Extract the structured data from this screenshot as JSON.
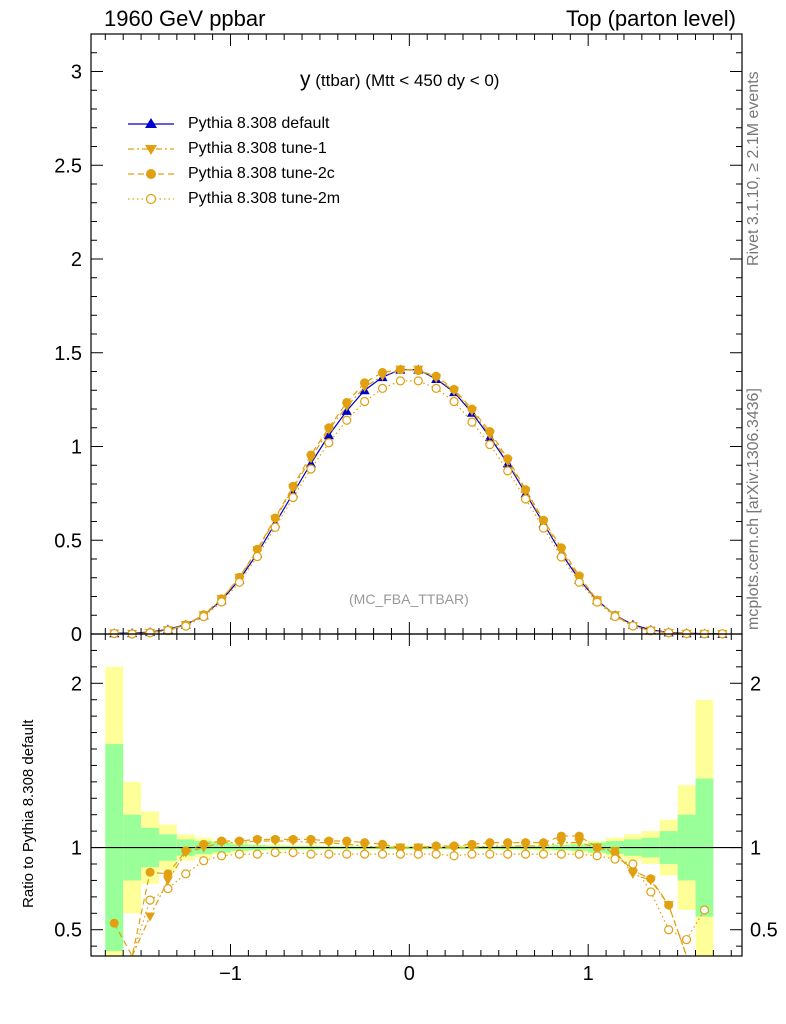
{
  "header": {
    "left": "1960 GeV ppbar",
    "right": "Top (parton level)"
  },
  "side_text": {
    "rivet": "Rivet 3.1.10, ≥ 2.1M events",
    "mcplots": "mcplots.cern.ch [arXiv:1306.3436]"
  },
  "ratio_ylabel": "Ratio to Pythia 8.308 default",
  "analysis_tag": "(MC_FBA_TTBAR)",
  "title": {
    "main": "y",
    "sub": "(ttbar) (Mtt < 450 dy < 0)"
  },
  "colors": {
    "default": "#0000cc",
    "tunes": "#e0a010",
    "band_inner": "#99ff99",
    "band_outer": "#ffff99"
  },
  "chart_data": [
    {
      "type": "line",
      "title": "y (ttbar) (Mtt < 450 dy < 0)",
      "xlim": [
        -1.78,
        1.86
      ],
      "ylim": [
        0,
        3.2
      ],
      "x_ticks": [
        -1,
        0,
        1
      ],
      "y_ticks": [
        0,
        0.5,
        1,
        1.5,
        2,
        2.5,
        3
      ],
      "y_tick_labels": [
        "0",
        "0.5",
        "1",
        "1.5",
        "2",
        "2.5",
        "3"
      ],
      "legend_position": "top-left",
      "x": [
        -1.65,
        -1.55,
        -1.45,
        -1.35,
        -1.25,
        -1.15,
        -1.05,
        -0.95,
        -0.85,
        -0.75,
        -0.65,
        -0.55,
        -0.45,
        -0.35,
        -0.25,
        -0.15,
        -0.05,
        0.05,
        0.15,
        0.25,
        0.35,
        0.45,
        0.55,
        0.65,
        0.75,
        0.85,
        0.95,
        1.05,
        1.15,
        1.25,
        1.35,
        1.45,
        1.55,
        1.65,
        1.75
      ],
      "series": [
        {
          "name": "Pythia 8.308 default",
          "marker": "triangle-up",
          "line": "solid",
          "values": [
            0.004,
            0.005,
            0.01,
            0.025,
            0.05,
            0.1,
            0.18,
            0.29,
            0.43,
            0.59,
            0.75,
            0.91,
            1.06,
            1.19,
            1.3,
            1.37,
            1.41,
            1.41,
            1.36,
            1.29,
            1.18,
            1.05,
            0.91,
            0.75,
            0.59,
            0.43,
            0.29,
            0.18,
            0.1,
            0.05,
            0.022,
            0.009,
            0.004,
            0.002,
            0.001
          ]
        },
        {
          "name": "Pythia 8.308 tune-1",
          "marker": "triangle-down",
          "line": "dashdot",
          "values": [
            0.003,
            0.001,
            0.006,
            0.02,
            0.048,
            0.1,
            0.186,
            0.3,
            0.446,
            0.612,
            0.778,
            0.937,
            1.09,
            1.214,
            1.317,
            1.376,
            1.41,
            1.41,
            1.365,
            1.296,
            1.19,
            1.063,
            0.92,
            0.76,
            0.597,
            0.444,
            0.3,
            0.18,
            0.1,
            0.042,
            0.018,
            0.006,
            0.001,
            0.001,
            0.0
          ]
        },
        {
          "name": "Pythia 8.308 tune-2c",
          "marker": "circle",
          "line": "dashed",
          "values": [
            0.002,
            0.001,
            0.008,
            0.021,
            0.049,
            0.103,
            0.188,
            0.302,
            0.452,
            0.619,
            0.788,
            0.955,
            1.1,
            1.235,
            1.34,
            1.395,
            1.41,
            1.405,
            1.375,
            1.305,
            1.2,
            1.08,
            0.935,
            0.77,
            0.607,
            0.46,
            0.31,
            0.18,
            0.097,
            0.043,
            0.018,
            0.006,
            0.003,
            0.001,
            0.0
          ]
        },
        {
          "name": "Pythia 8.308 tune-2m",
          "marker": "circle-open",
          "line": "dotted",
          "values": [
            0.0025,
            0.0,
            0.0068,
            0.019,
            0.042,
            0.093,
            0.171,
            0.276,
            0.413,
            0.569,
            0.728,
            0.88,
            1.02,
            1.14,
            1.24,
            1.31,
            1.35,
            1.35,
            1.31,
            1.24,
            1.13,
            1.01,
            0.87,
            0.72,
            0.565,
            0.411,
            0.276,
            0.17,
            0.093,
            0.043,
            0.018,
            0.007,
            0.002,
            0.001,
            0.001
          ]
        }
      ]
    },
    {
      "type": "line",
      "ylabel": "Ratio to Pythia 8.308 default",
      "xlim": [
        -1.78,
        1.86
      ],
      "ylim": [
        0.34,
        2.3
      ],
      "x_ticks": [
        -1,
        0,
        1
      ],
      "x_tick_labels": [
        "−1",
        "0",
        "1"
      ],
      "y_ticks": [
        0.5,
        1,
        2
      ],
      "y_tick_labels": [
        "0.5",
        "1",
        "2"
      ],
      "x": [
        -1.65,
        -1.55,
        -1.45,
        -1.35,
        -1.25,
        -1.15,
        -1.05,
        -0.95,
        -0.85,
        -0.75,
        -0.65,
        -0.55,
        -0.45,
        -0.35,
        -0.25,
        -0.15,
        -0.05,
        0.05,
        0.15,
        0.25,
        0.35,
        0.45,
        0.55,
        0.65,
        0.75,
        0.85,
        0.95,
        1.05,
        1.15,
        1.25,
        1.35,
        1.45,
        1.55,
        1.65
      ],
      "band_edges": [
        -1.7,
        -1.6,
        -1.5,
        -1.4,
        -1.3,
        -1.2,
        -1.1,
        -1.0,
        -0.9,
        -0.8,
        -0.7,
        -0.6,
        -0.5,
        -0.4,
        -0.3,
        -0.2,
        -0.1,
        0.0,
        0.1,
        0.2,
        0.3,
        0.4,
        0.5,
        0.6,
        0.7,
        0.8,
        0.9,
        1.0,
        1.1,
        1.2,
        1.3,
        1.4,
        1.5,
        1.6,
        1.7
      ],
      "band_inner_halfwidth": [
        0.63,
        0.2,
        0.12,
        0.08,
        0.05,
        0.04,
        0.03,
        0.02,
        0.015,
        0.01,
        0.01,
        0.01,
        0.008,
        0.008,
        0.008,
        0.008,
        0.008,
        0.008,
        0.008,
        0.008,
        0.008,
        0.008,
        0.01,
        0.01,
        0.01,
        0.015,
        0.02,
        0.03,
        0.04,
        0.05,
        0.06,
        0.1,
        0.2,
        0.42
      ],
      "band_outer_halfwidth": [
        1.1,
        0.4,
        0.22,
        0.14,
        0.08,
        0.06,
        0.04,
        0.03,
        0.02,
        0.02,
        0.015,
        0.015,
        0.012,
        0.012,
        0.012,
        0.012,
        0.012,
        0.012,
        0.012,
        0.012,
        0.012,
        0.012,
        0.015,
        0.015,
        0.02,
        0.02,
        0.03,
        0.04,
        0.06,
        0.08,
        0.1,
        0.17,
        0.38,
        0.9
      ],
      "series": [
        {
          "name": "Pythia 8.308 tune-1",
          "marker": "triangle-down",
          "line": "dashdot",
          "values": [
            null,
            0.23,
            0.58,
            0.8,
            0.97,
            1.0,
            1.03,
            1.03,
            1.04,
            1.04,
            1.04,
            1.03,
            1.03,
            1.02,
            1.01,
            1.0,
            1.0,
            1.0,
            1.0,
            1.0,
            1.0,
            1.01,
            1.01,
            1.01,
            1.01,
            1.03,
            1.03,
            1.0,
            0.98,
            0.84,
            0.8,
            0.65,
            0.32,
            null
          ]
        },
        {
          "name": "Pythia 8.308 tune-2c",
          "marker": "circle",
          "line": "dashed",
          "values": [
            0.54,
            0.18,
            0.85,
            0.84,
            0.98,
            1.02,
            1.04,
            1.04,
            1.05,
            1.05,
            1.05,
            1.05,
            1.04,
            1.04,
            1.03,
            1.02,
            1.0,
            1.0,
            1.01,
            1.01,
            1.02,
            1.03,
            1.03,
            1.03,
            1.03,
            1.07,
            1.07,
            1.0,
            0.97,
            0.86,
            0.81,
            0.65,
            0.32,
            null
          ]
        },
        {
          "name": "Pythia 8.308 tune-2m",
          "marker": "circle-open",
          "line": "dotted",
          "values": [
            null,
            0.28,
            0.68,
            0.75,
            0.84,
            0.92,
            0.95,
            0.96,
            0.96,
            0.97,
            0.97,
            0.96,
            0.96,
            0.96,
            0.96,
            0.96,
            0.96,
            0.96,
            0.96,
            0.95,
            0.96,
            0.96,
            0.96,
            0.96,
            0.96,
            0.96,
            0.96,
            0.95,
            0.93,
            0.9,
            0.73,
            0.5,
            0.44,
            0.62
          ]
        }
      ]
    }
  ]
}
